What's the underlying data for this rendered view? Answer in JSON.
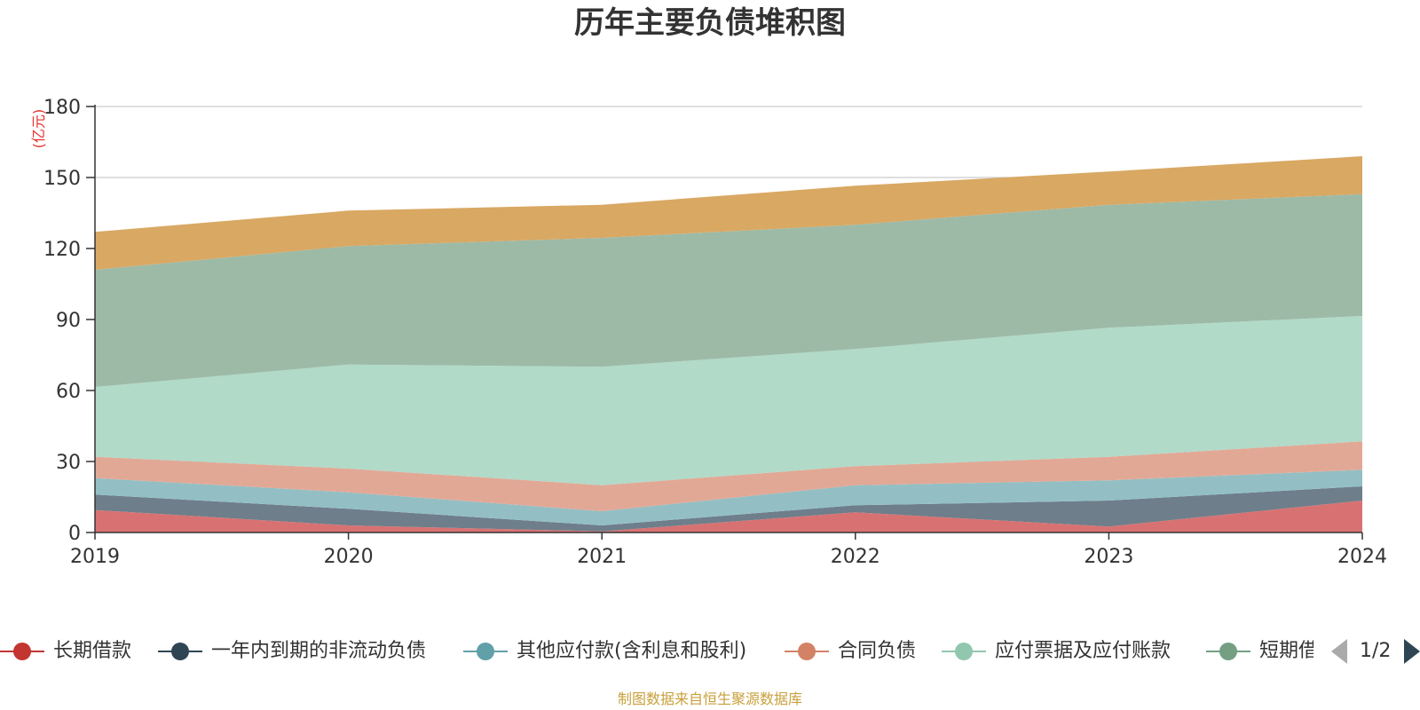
{
  "title": "历年主要负债堆积图",
  "footer": "制图数据来自恒生聚源数据库",
  "pager": {
    "text": "1/2"
  },
  "chart_data": {
    "type": "area",
    "stacked": true,
    "title": "历年主要负债堆积图",
    "ylabel": "(亿元)",
    "xlabel": "",
    "categories": [
      "2019",
      "2020",
      "2021",
      "2022",
      "2023",
      "2024"
    ],
    "ylim": [
      0,
      180
    ],
    "yticks": [
      0,
      30,
      60,
      90,
      120,
      150,
      180
    ],
    "grid": true,
    "legend_position": "bottom",
    "series": [
      {
        "name": "长期借款",
        "color": "#c23531",
        "fill": "#d87272",
        "values": [
          9.5,
          3.0,
          0.5,
          8.5,
          2.5,
          13.5
        ]
      },
      {
        "name": "一年内到期的非流动负债",
        "color": "#2f4554",
        "fill": "#6e7e8a",
        "values": [
          6.5,
          7.0,
          2.5,
          3.0,
          11.0,
          6.0
        ]
      },
      {
        "name": "其他应付款(含利息和股利)",
        "color": "#61a0a8",
        "fill": "#93bfc4",
        "values": [
          7.0,
          7.0,
          6.0,
          8.5,
          8.5,
          7.0
        ]
      },
      {
        "name": "合同负债",
        "color": "#d48265",
        "fill": "#e2a896",
        "values": [
          9.0,
          10.0,
          11.0,
          8.0,
          10.0,
          12.0
        ]
      },
      {
        "name": "应付票据及应付账款",
        "color": "#91c7ae",
        "fill": "#b1dac8",
        "values": [
          29.5,
          44.0,
          50.0,
          49.5,
          54.5,
          53.0
        ]
      },
      {
        "name": "短期借款",
        "color": "#749f83",
        "fill": "#9dbaa7",
        "values": [
          49.5,
          50.0,
          54.5,
          52.5,
          52.0,
          51.5
        ]
      },
      {
        "name": "",
        "color": "#ca8622",
        "fill": "#d9a863",
        "values": [
          16.0,
          15.0,
          14.0,
          16.5,
          14.0,
          16.0
        ]
      }
    ]
  }
}
